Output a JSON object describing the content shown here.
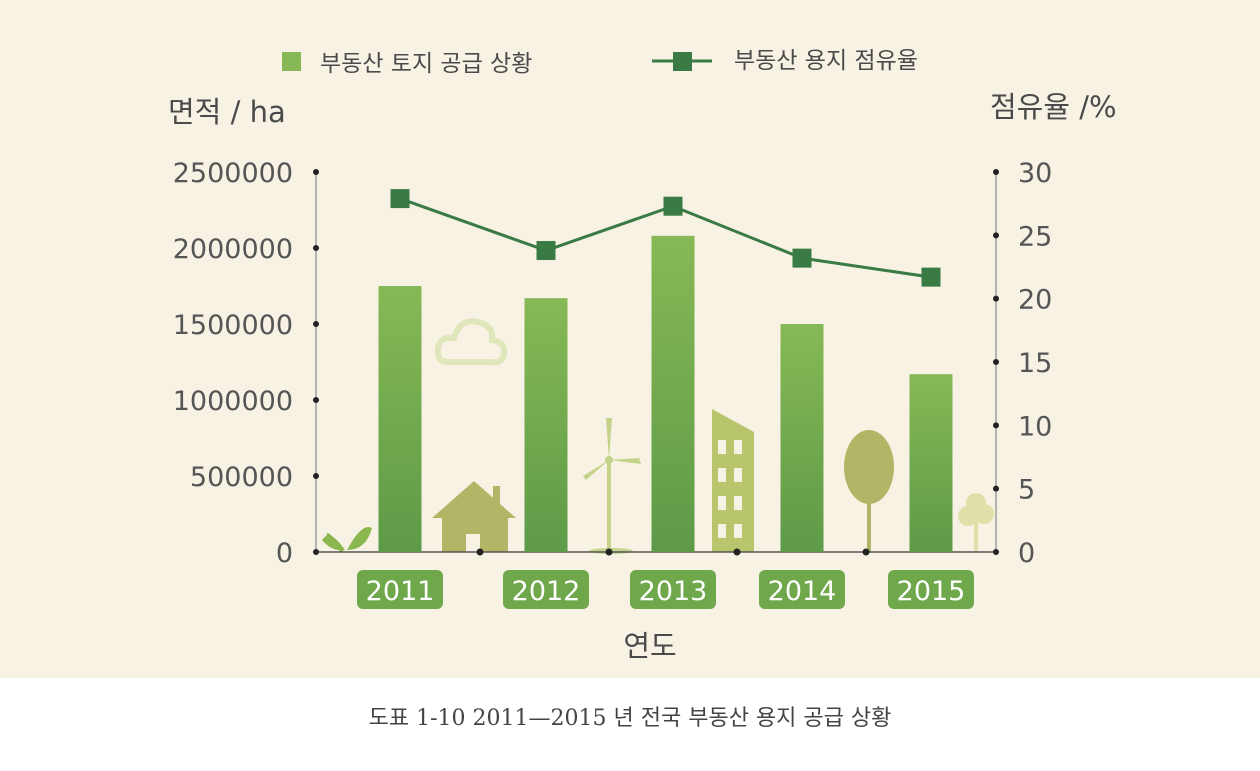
{
  "chart_data": {
    "type": "bar+line",
    "categories": [
      "2011",
      "2012",
      "2013",
      "2014",
      "2015"
    ],
    "series": [
      {
        "name": "부동산 토지 공급 상황",
        "type": "bar",
        "axis": "left",
        "color": "#7fb350",
        "values": [
          1750000,
          1670000,
          2080000,
          1500000,
          1170000
        ]
      },
      {
        "name": "부동산 용지 점유율",
        "type": "line",
        "axis": "right",
        "color": "#3a7a45",
        "values": [
          27.9,
          23.8,
          27.3,
          23.2,
          21.7
        ]
      }
    ],
    "y_left": {
      "label": "면적 / ha",
      "ticks": [
        "0",
        "500000",
        "1000000",
        "1500000",
        "2000000",
        "2500000"
      ],
      "ylim": [
        0,
        2500000
      ]
    },
    "y_right": {
      "label": "점유율 /%",
      "ticks": [
        "0",
        "5",
        "10",
        "15",
        "20",
        "25",
        "30"
      ],
      "ylim": [
        0,
        30
      ]
    },
    "xlabel": "연도",
    "legend_position": "top"
  },
  "caption": "도표 1-10 2011—2015 년 전국 부동산 용지 공급 상황"
}
